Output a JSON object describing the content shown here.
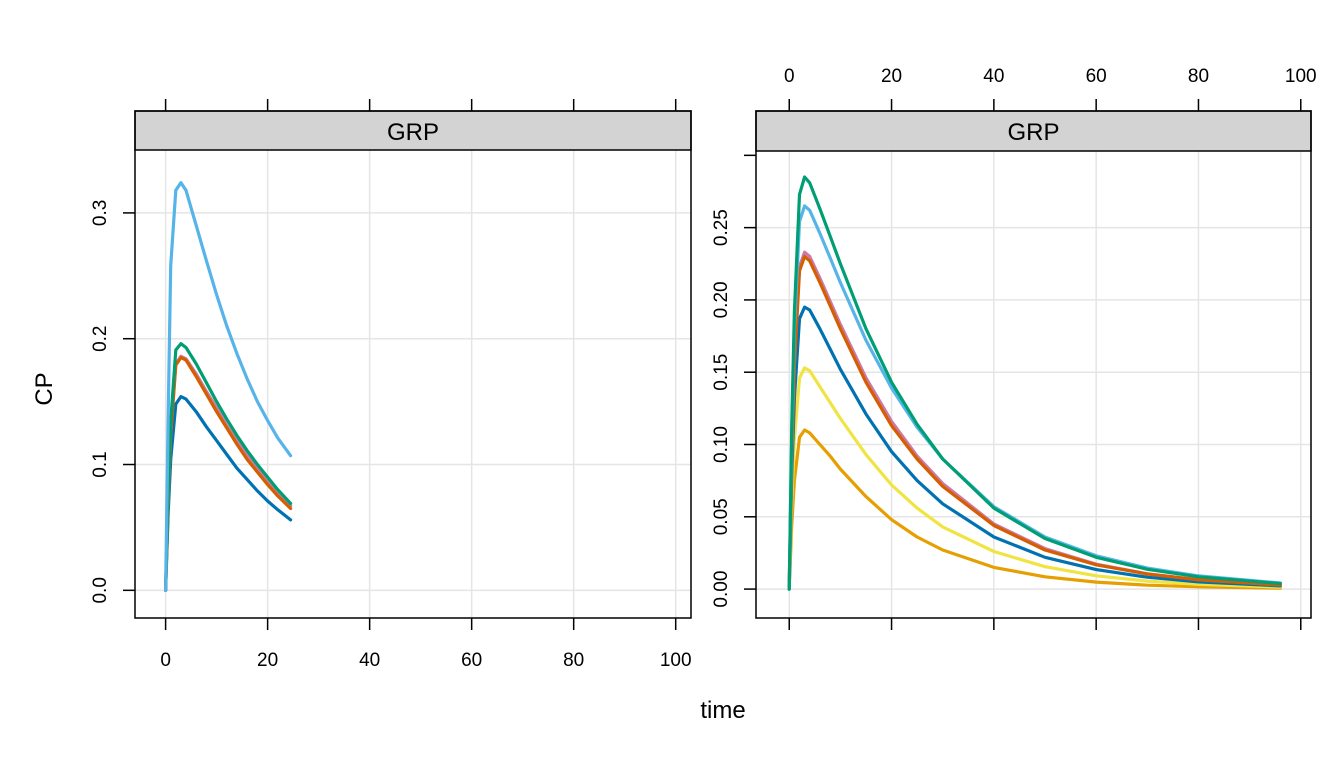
{
  "chart_data": {
    "type": "line",
    "xlabel": "time",
    "ylabel": "CP",
    "colors": [
      "#0072B2",
      "#D55E00",
      "#CC79A7",
      "#009E73",
      "#56B4E9",
      "#F0E442",
      "#E69F00"
    ],
    "panels": [
      {
        "strip": "GRP",
        "xlim": [
          -6,
          103
        ],
        "ylim": [
          -0.022,
          0.35
        ],
        "x_ticks": [
          0,
          20,
          40,
          60,
          80,
          100
        ],
        "y_ticks": [
          0.0,
          0.1,
          0.2,
          0.3
        ],
        "y_tick_labels": [
          "0.0",
          "0.1",
          "0.2",
          "0.3"
        ],
        "x_tick_labels_position": "bottom",
        "x_grid": [
          0,
          20,
          40,
          60,
          80,
          100
        ],
        "y_grid": [
          0.0,
          0.1,
          0.2,
          0.3
        ],
        "series": [
          {
            "color": "#0072B2",
            "x": [
              0,
              0.5,
              1,
              2,
              3,
              4,
              6,
              8,
              10,
              12,
              14,
              16,
              18,
              20,
              22,
              24.5
            ],
            "y": [
              0,
              0.062,
              0.104,
              0.148,
              0.154,
              0.152,
              0.142,
              0.13,
              0.119,
              0.108,
              0.097,
              0.088,
              0.079,
              0.071,
              0.064,
              0.056
            ]
          },
          {
            "color": "#CC79A7",
            "x": [
              0,
              0.5,
              1,
              2,
              3,
              4,
              6,
              8,
              10,
              12,
              14,
              16,
              18,
              20,
              22,
              24.5
            ],
            "y": [
              0,
              0.075,
              0.125,
              0.18,
              0.186,
              0.184,
              0.172,
              0.158,
              0.145,
              0.131,
              0.119,
              0.107,
              0.097,
              0.087,
              0.078,
              0.067
            ]
          },
          {
            "color": "#D55E00",
            "x": [
              0,
              0.5,
              1,
              2,
              3,
              4,
              6,
              8,
              10,
              12,
              14,
              16,
              18,
              20,
              22,
              24.5
            ],
            "y": [
              0,
              0.074,
              0.124,
              0.179,
              0.185,
              0.183,
              0.17,
              0.156,
              0.142,
              0.129,
              0.116,
              0.104,
              0.094,
              0.084,
              0.075,
              0.065
            ]
          },
          {
            "color": "#009E73",
            "x": [
              0,
              0.5,
              1,
              2,
              3,
              4,
              6,
              8,
              10,
              12,
              14,
              16,
              18,
              20,
              22,
              24.5
            ],
            "y": [
              0,
              0.08,
              0.134,
              0.191,
              0.196,
              0.193,
              0.18,
              0.165,
              0.15,
              0.136,
              0.123,
              0.111,
              0.1,
              0.09,
              0.08,
              0.069
            ]
          },
          {
            "color": "#56B4E9",
            "x": [
              0,
              0.5,
              1,
              2,
              3,
              4,
              6,
              8,
              10,
              12,
              14,
              16,
              18,
              20,
              22,
              24.5
            ],
            "y": [
              0,
              0.14,
              0.258,
              0.318,
              0.324,
              0.318,
              0.29,
              0.262,
              0.235,
              0.21,
              0.188,
              0.168,
              0.15,
              0.135,
              0.121,
              0.107
            ]
          }
        ]
      },
      {
        "strip": "GRP",
        "xlim": [
          -6.5,
          102
        ],
        "ylim": [
          -0.02,
          0.303
        ],
        "x_ticks": [
          0,
          20,
          40,
          60,
          80,
          100
        ],
        "y_ticks": [
          0.0,
          0.05,
          0.1,
          0.15,
          0.2,
          0.25,
          0.3
        ],
        "y_tick_labels": [
          "0.00",
          "0.05",
          "0.10",
          "0.15",
          "0.20",
          "0.25",
          ""
        ],
        "x_tick_labels_position": "top",
        "x_grid": [
          0,
          20,
          40,
          60,
          80,
          100
        ],
        "y_grid": [
          0.0,
          0.05,
          0.1,
          0.15,
          0.2,
          0.25
        ],
        "series": [
          {
            "color": "#E69F00",
            "x": [
              0,
              0.5,
              1,
              2,
              3,
              4,
              6,
              8,
              10,
              15,
              20,
              25,
              30,
              40,
              50,
              60,
              70,
              80,
              96
            ],
            "y": [
              0,
              0.045,
              0.075,
              0.105,
              0.11,
              0.108,
              0.1,
              0.092,
              0.083,
              0.064,
              0.048,
              0.036,
              0.027,
              0.015,
              0.0085,
              0.0048,
              0.0027,
              0.0016,
              0.0006
            ]
          },
          {
            "color": "#F0E442",
            "x": [
              0,
              0.5,
              1,
              2,
              3,
              4,
              6,
              8,
              10,
              15,
              20,
              25,
              30,
              40,
              50,
              60,
              70,
              80,
              96
            ],
            "y": [
              0,
              0.062,
              0.104,
              0.146,
              0.153,
              0.151,
              0.14,
              0.129,
              0.118,
              0.093,
              0.072,
              0.056,
              0.043,
              0.026,
              0.0155,
              0.0092,
              0.0055,
              0.0033,
              0.0014
            ]
          },
          {
            "color": "#0072B2",
            "x": [
              0,
              0.5,
              1,
              2,
              3,
              4,
              6,
              8,
              10,
              15,
              20,
              25,
              30,
              40,
              50,
              60,
              70,
              80,
              96
            ],
            "y": [
              0,
              0.08,
              0.132,
              0.187,
              0.195,
              0.193,
              0.18,
              0.166,
              0.152,
              0.121,
              0.095,
              0.075,
              0.059,
              0.036,
              0.022,
              0.0135,
              0.0082,
              0.005,
              0.0022
            ]
          },
          {
            "color": "#CC79A7",
            "x": [
              0,
              0.5,
              1,
              2,
              3,
              4,
              6,
              8,
              10,
              15,
              20,
              25,
              30,
              40,
              50,
              60,
              70,
              80,
              96
            ],
            "y": [
              0,
              0.095,
              0.157,
              0.223,
              0.233,
              0.23,
              0.215,
              0.199,
              0.183,
              0.146,
              0.116,
              0.092,
              0.073,
              0.045,
              0.028,
              0.0172,
              0.0106,
              0.0065,
              0.0029
            ]
          },
          {
            "color": "#D55E00",
            "x": [
              0,
              0.5,
              1,
              2,
              3,
              4,
              6,
              8,
              10,
              15,
              20,
              25,
              30,
              40,
              50,
              60,
              70,
              80,
              96
            ],
            "y": [
              0,
              0.094,
              0.155,
              0.22,
              0.23,
              0.227,
              0.212,
              0.196,
              0.18,
              0.143,
              0.113,
              0.09,
              0.071,
              0.044,
              0.027,
              0.0168,
              0.0104,
              0.0064,
              0.0028
            ]
          },
          {
            "color": "#56B4E9",
            "x": [
              0,
              0.5,
              1,
              2,
              3,
              4,
              6,
              8,
              10,
              15,
              20,
              25,
              30,
              40,
              50,
              60,
              70,
              80,
              96
            ],
            "y": [
              0,
              0.108,
              0.18,
              0.254,
              0.265,
              0.262,
              0.246,
              0.229,
              0.212,
              0.172,
              0.139,
              0.112,
              0.09,
              0.057,
              0.036,
              0.023,
              0.0145,
              0.0091,
              0.0042
            ]
          },
          {
            "color": "#009E73",
            "x": [
              0,
              0.5,
              1,
              2,
              3,
              4,
              6,
              8,
              10,
              15,
              20,
              25,
              30,
              40,
              50,
              60,
              70,
              80,
              96
            ],
            "y": [
              0,
              0.115,
              0.192,
              0.273,
              0.285,
              0.281,
              0.263,
              0.244,
              0.225,
              0.18,
              0.143,
              0.114,
              0.09,
              0.056,
              0.035,
              0.022,
              0.0137,
              0.0085,
              0.0038
            ]
          }
        ]
      }
    ]
  }
}
